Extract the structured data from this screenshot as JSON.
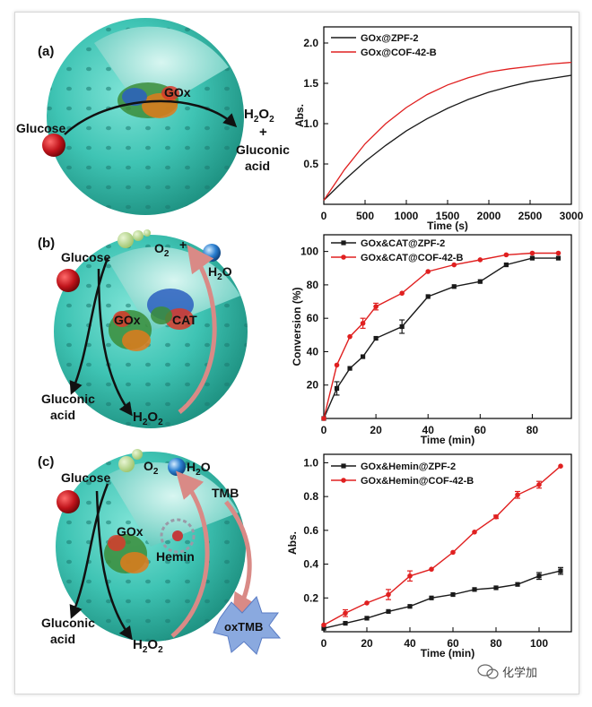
{
  "panels": {
    "a": {
      "label": "(a)",
      "glucose": "Glucose",
      "enzyme": "GOx",
      "h2o2": "H",
      "h2o2_sub1": "2",
      "h2o2_mid": "O",
      "h2o2_sub2": "2",
      "plus": "+",
      "gluconic1": "Gluconic",
      "gluconic2": "acid"
    },
    "b": {
      "label": "(b)",
      "glucose": "Glucose",
      "o2": "O",
      "o2_sub": "2",
      "plus": "+",
      "h2o": "H",
      "h2o_sub": "2",
      "h2o_o": "O",
      "gox": "GOx",
      "cat": "CAT",
      "gluconic1": "Gluconic",
      "gluconic2": "acid",
      "h2o2": "H",
      "h2o2_sub1": "2",
      "h2o2_mid": "O",
      "h2o2_sub2": "2"
    },
    "c": {
      "label": "(c)",
      "glucose": "Glucose",
      "o2": "O",
      "o2_sub": "2",
      "h2o": "H",
      "h2o_sub": "2",
      "h2o_o": "O",
      "tmb": "TMB",
      "gox": "GOx",
      "hemin": "Hemin",
      "oxtmb": "oxTMB",
      "gluconic1": "Gluconic",
      "gluconic2": "acid",
      "h2o2": "H",
      "h2o2_sub1": "2",
      "h2o2_mid": "O",
      "h2o2_sub2": "2"
    }
  },
  "watermark": "化学加",
  "colors": {
    "black": "#1a1a1a",
    "red": "#e02020",
    "sphere": "#3fc4b4",
    "sphere_dark": "#2aa896",
    "glucose": "#c0141b",
    "o2": "#b7d68a",
    "h2o": "#2b7fd0"
  },
  "chart_data": [
    {
      "type": "line",
      "title": "",
      "xlabel": "Time (s)",
      "ylabel": "Abs.",
      "xlim": [
        0,
        3000
      ],
      "ylim": [
        0,
        2.2
      ],
      "xticks": [
        "0",
        "500",
        "1000",
        "1500",
        "2000",
        "2500",
        "3000"
      ],
      "yticks": [
        "0.5",
        "1.0",
        "1.5",
        "2.0"
      ],
      "xtick_values": [
        0,
        500,
        1000,
        1500,
        2000,
        2500,
        3000
      ],
      "ytick_values": [
        0.5,
        1.0,
        1.5,
        2.0
      ],
      "legend": "top-left",
      "markers": false,
      "series": [
        {
          "name": "GOx@ZPF-2",
          "color": "#1a1a1a",
          "x": [
            0,
            250,
            500,
            750,
            1000,
            1250,
            1500,
            1750,
            2000,
            2250,
            2500,
            2750,
            3000
          ],
          "y": [
            0.05,
            0.3,
            0.53,
            0.73,
            0.91,
            1.06,
            1.19,
            1.3,
            1.39,
            1.46,
            1.52,
            1.56,
            1.6
          ]
        },
        {
          "name": "GOx@COF-42-B",
          "color": "#e02020",
          "x": [
            0,
            250,
            500,
            750,
            1000,
            1250,
            1500,
            1750,
            2000,
            2250,
            2500,
            2750,
            3000
          ],
          "y": [
            0.05,
            0.43,
            0.75,
            1.0,
            1.2,
            1.36,
            1.48,
            1.57,
            1.64,
            1.68,
            1.71,
            1.74,
            1.76
          ]
        }
      ]
    },
    {
      "type": "line",
      "title": "",
      "xlabel": "Time (min)",
      "ylabel": "Conversion (%)",
      "xlim": [
        0,
        95
      ],
      "ylim": [
        0,
        110
      ],
      "xticks": [
        "0",
        "20",
        "40",
        "60",
        "80"
      ],
      "yticks": [
        "20",
        "40",
        "60",
        "80",
        "100"
      ],
      "xtick_values": [
        0,
        20,
        40,
        60,
        80
      ],
      "ytick_values": [
        20,
        40,
        60,
        80,
        100
      ],
      "legend": "top-left",
      "markers": true,
      "series": [
        {
          "name": "GOx&CAT@ZPF-2",
          "color": "#1a1a1a",
          "x": [
            0,
            5,
            10,
            15,
            20,
            30,
            40,
            50,
            60,
            70,
            80,
            90
          ],
          "y": [
            0,
            18,
            30,
            37,
            48,
            55,
            73,
            79,
            82,
            92,
            96,
            96
          ],
          "err": [
            0,
            4,
            0,
            0,
            0,
            4,
            0,
            0,
            0,
            0,
            0,
            0
          ]
        },
        {
          "name": "GOx&CAT@COF-42-B",
          "color": "#e02020",
          "x": [
            0,
            5,
            10,
            15,
            20,
            30,
            40,
            50,
            60,
            70,
            80,
            90
          ],
          "y": [
            0,
            32,
            49,
            57,
            67,
            75,
            88,
            92,
            95,
            98,
            99,
            99
          ],
          "err": [
            0,
            0,
            0,
            3,
            2,
            0,
            0,
            0,
            0,
            0,
            0,
            0
          ]
        }
      ]
    },
    {
      "type": "line",
      "title": "",
      "xlabel": "Time (min)",
      "ylabel": "Abs.",
      "xlim": [
        0,
        115
      ],
      "ylim": [
        0,
        1.05
      ],
      "xticks": [
        "0",
        "20",
        "40",
        "60",
        "80",
        "100"
      ],
      "yticks": [
        "0.2",
        "0.4",
        "0.6",
        "0.8",
        "1.0"
      ],
      "xtick_values": [
        0,
        20,
        40,
        60,
        80,
        100
      ],
      "ytick_values": [
        0.2,
        0.4,
        0.6,
        0.8,
        1.0
      ],
      "legend": "top-left",
      "markers": true,
      "series": [
        {
          "name": "GOx&Hemin@ZPF-2",
          "color": "#1a1a1a",
          "x": [
            0,
            10,
            20,
            30,
            40,
            50,
            60,
            70,
            80,
            90,
            100,
            110
          ],
          "y": [
            0.02,
            0.05,
            0.08,
            0.12,
            0.15,
            0.2,
            0.22,
            0.25,
            0.26,
            0.28,
            0.33,
            0.36
          ],
          "err": [
            0,
            0,
            0,
            0,
            0,
            0,
            0,
            0,
            0,
            0,
            0.02,
            0.02
          ]
        },
        {
          "name": "GOx&Hemin@COF-42-B",
          "color": "#e02020",
          "x": [
            0,
            10,
            20,
            30,
            40,
            50,
            60,
            70,
            80,
            90,
            100,
            110
          ],
          "y": [
            0.04,
            0.11,
            0.17,
            0.22,
            0.33,
            0.37,
            0.47,
            0.59,
            0.68,
            0.81,
            0.87,
            0.98
          ],
          "err": [
            0,
            0.02,
            0,
            0.03,
            0.03,
            0,
            0,
            0,
            0.01,
            0.02,
            0.02,
            0
          ]
        }
      ]
    }
  ]
}
